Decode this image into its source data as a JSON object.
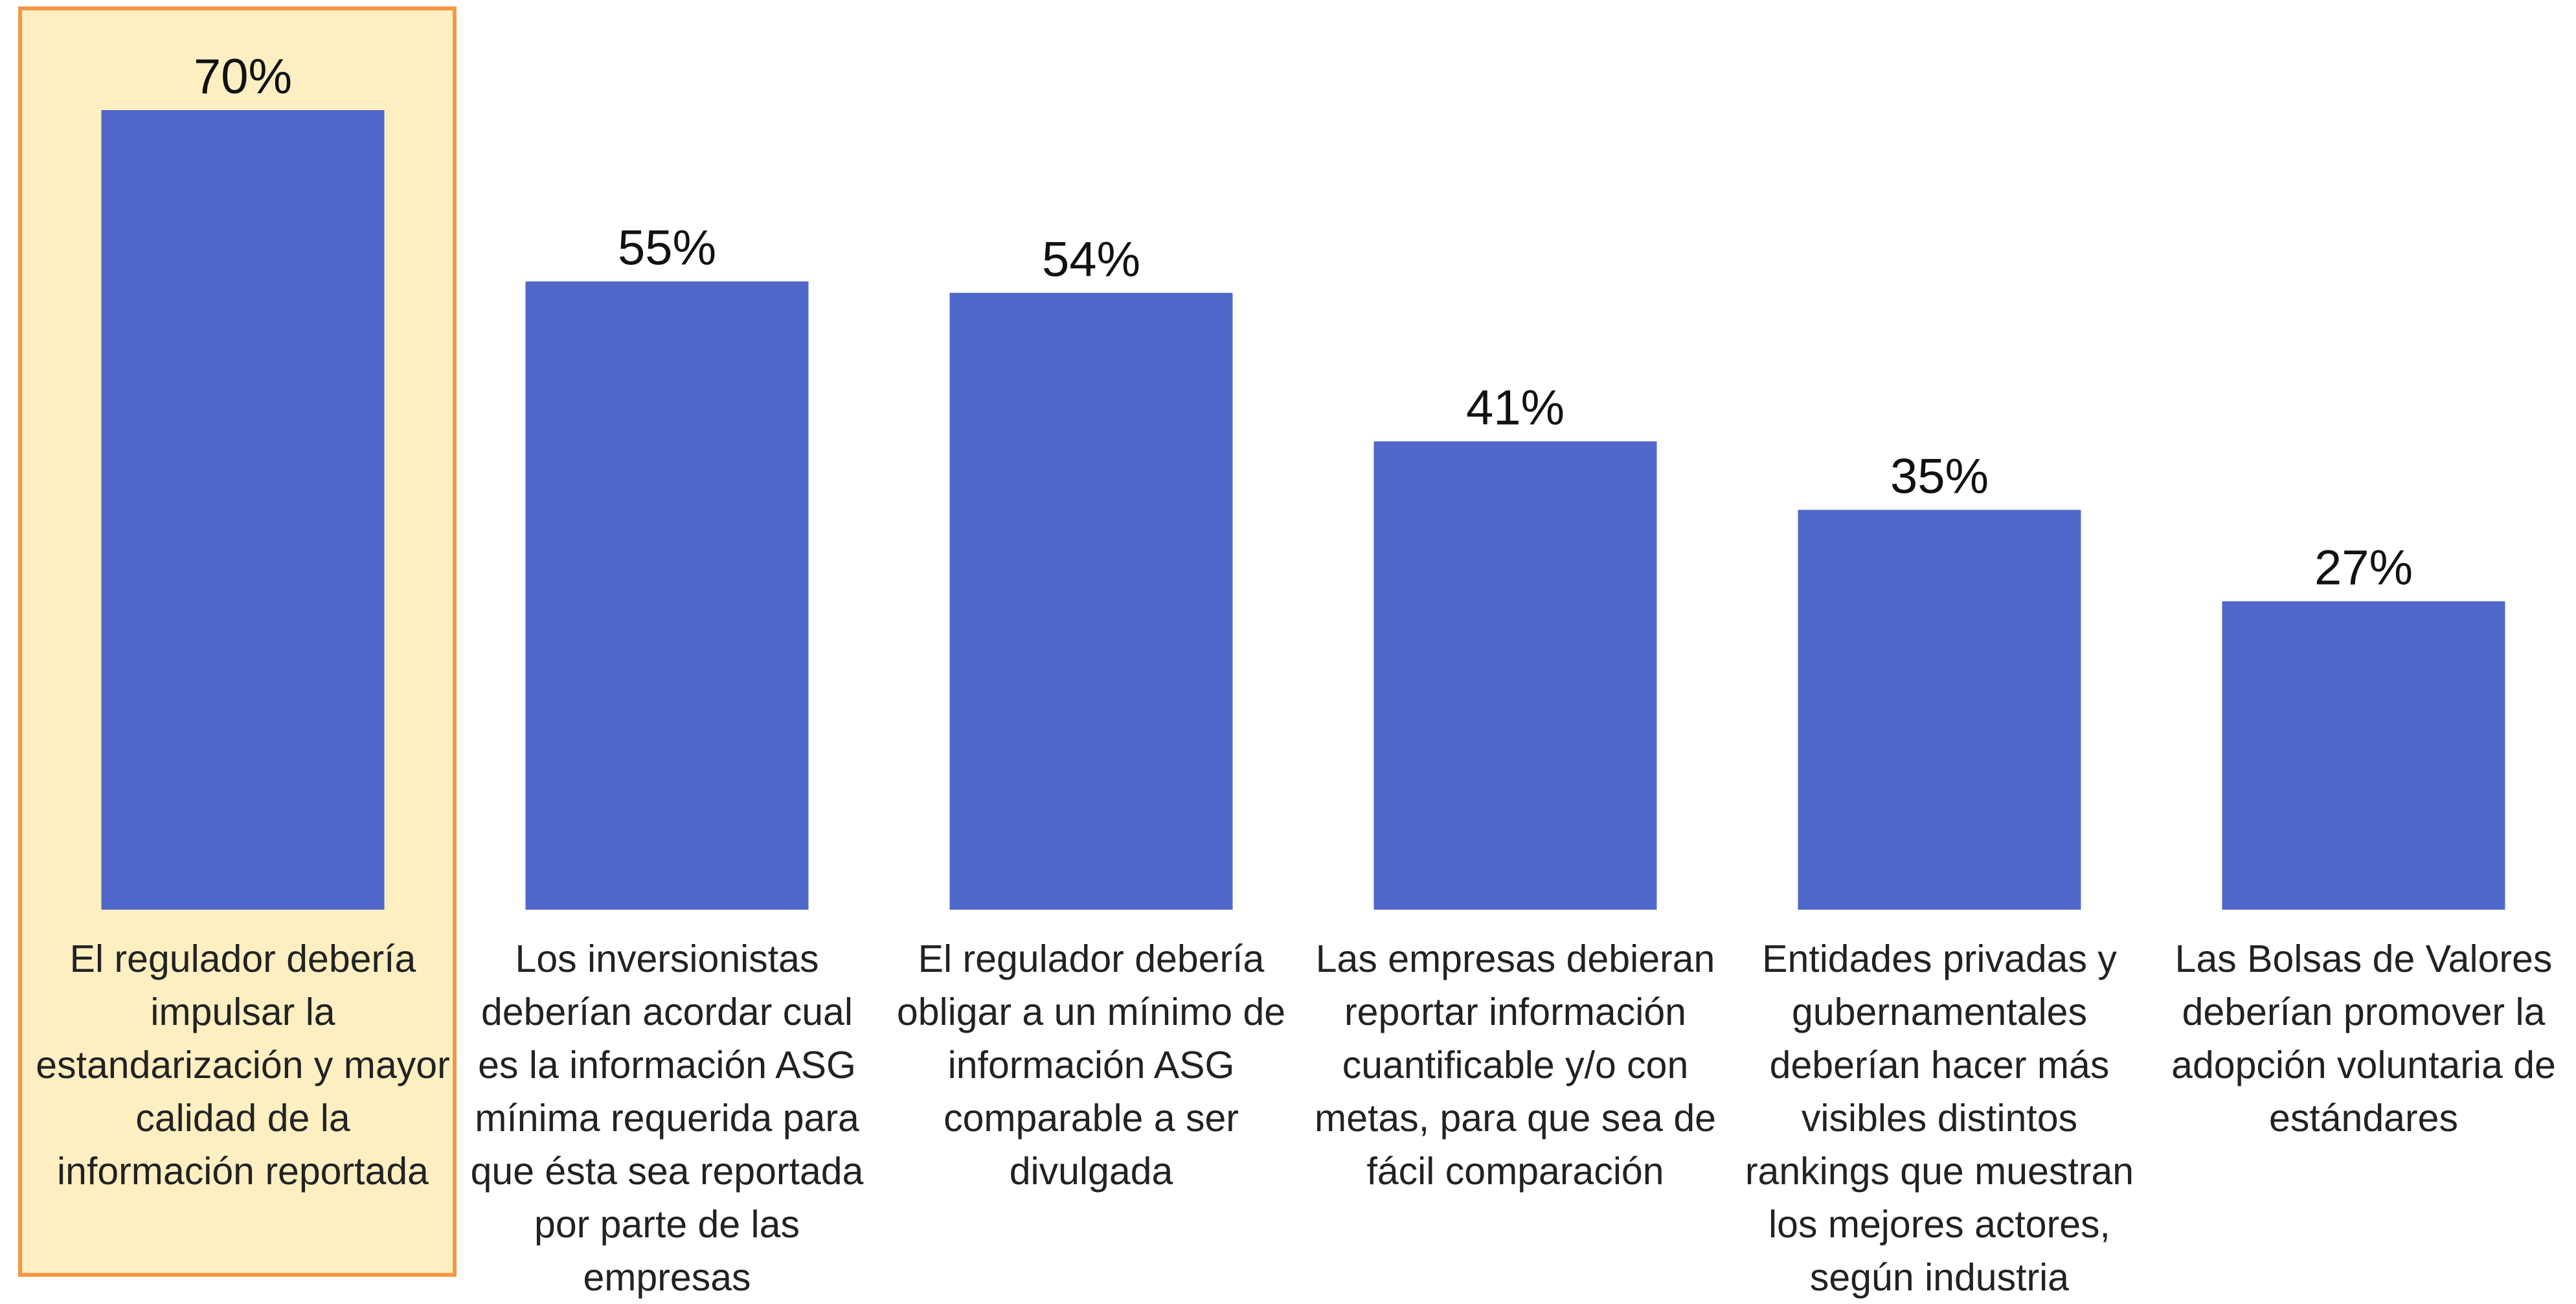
{
  "chart_data": {
    "type": "bar",
    "categories": [
      "El regulador debería impulsar la estandarización y mayor calidad de la información reportada",
      "Los inversionistas deberían acordar cual es la información ASG mínima requerida para que ésta sea reportada por parte de las empresas",
      "El regulador debería obligar a un mínimo de información ASG comparable a ser divulgada",
      "Las empresas debieran reportar información cuantificable y/o con metas, para que sea de fácil comparación",
      "Entidades privadas y gubernamentales deberían hacer más visibles distintos rankings que muestran los mejores actores, según industria",
      "Las Bolsas de Valores deberían promover la adopción voluntaria de estándares"
    ],
    "values": [
      70,
      55,
      54,
      41,
      35,
      27
    ],
    "data_labels": [
      "70%",
      "55%",
      "54%",
      "41%",
      "35%",
      "27%"
    ],
    "ylim": [
      0,
      70
    ],
    "highlighted_category": 0,
    "grid": false,
    "legend": "none",
    "colors": {
      "bar": "#4f67c8",
      "highlight_fill": "#fdefc1",
      "highlight_border": "#f79646"
    }
  }
}
